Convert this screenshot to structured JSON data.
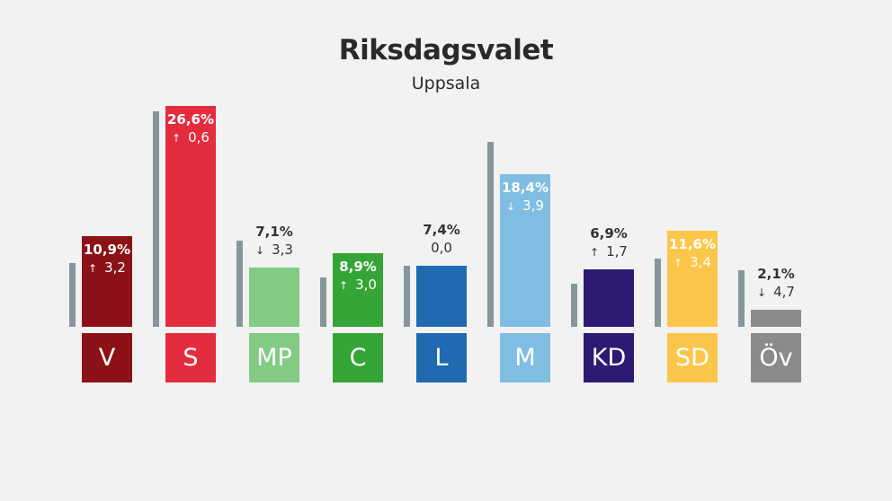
{
  "title": "Riksdagsvalet",
  "subtitle": "Uppsala",
  "chart_data": {
    "type": "bar",
    "title": "Riksdagsvalet",
    "subtitle": "Uppsala",
    "ylim": [
      0,
      30
    ],
    "categories": [
      "V",
      "S",
      "MP",
      "C",
      "L",
      "M",
      "KD",
      "SD",
      "Öv"
    ],
    "series": [
      {
        "values": [
          10.9,
          26.6,
          7.1,
          8.9,
          7.4,
          18.4,
          6.9,
          11.6,
          2.1
        ]
      },
      {
        "values": [
          7.7,
          26.0,
          10.4,
          5.9,
          7.4,
          22.3,
          5.2,
          8.2,
          6.8
        ]
      }
    ],
    "value_labels": [
      "10,9%",
      "26,6%",
      "7,1%",
      "8,9%",
      "7,4%",
      "18,4%",
      "6,9%",
      "11,6%",
      "2,1%"
    ],
    "change_labels": [
      "3,2",
      "0,6",
      "3,3",
      "3,0",
      "0,0",
      "3,9",
      "1,7",
      "3,4",
      "4,7"
    ],
    "change_direction": [
      "up",
      "up",
      "down",
      "up",
      "none",
      "down",
      "up",
      "up",
      "down"
    ],
    "colors": [
      "#8c1218",
      "#e32d3e",
      "#83ca84",
      "#36a537",
      "#1f6ab0",
      "#80bde2",
      "#2d1a73",
      "#fcc64a",
      "#8b8b8b"
    ],
    "label_inside": [
      true,
      true,
      false,
      true,
      false,
      true,
      false,
      true,
      false
    ],
    "label_color": [
      "#ffffff",
      "#ffffff",
      "#333333",
      "#ffffff",
      "#333333",
      "#ffffff",
      "#333333",
      "#ffffff",
      "#333333"
    ],
    "grid": false,
    "legend": "none"
  }
}
